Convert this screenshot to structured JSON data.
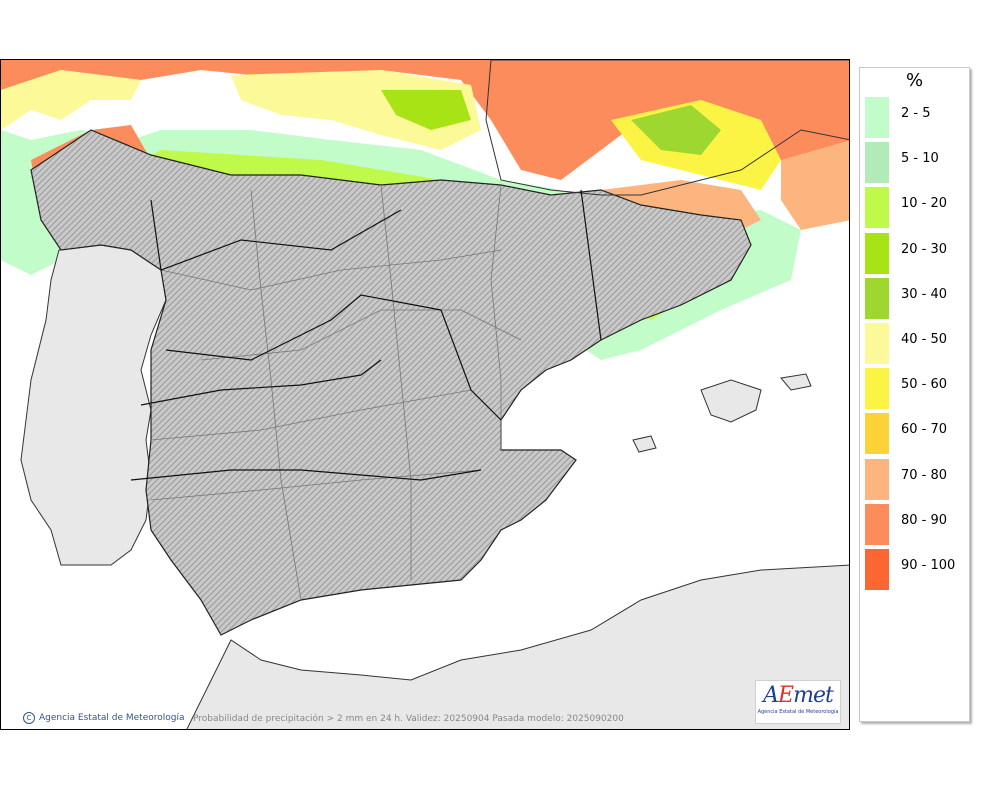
{
  "map": {
    "caption": "Probabilidad de precipitación > 2 mm en 24 h. Validez: 20250904 Pasada modelo: 2025090200",
    "copyright": "Agencia Estatal de Meteorología",
    "logo_brand_1": "A",
    "logo_brand_2": "E",
    "logo_brand_3": "met",
    "logo_sub": "Agencia Estatal de Meteorología"
  },
  "legend": {
    "title": "%",
    "items": [
      {
        "label": "2 - 5",
        "color": "#c2fcc9"
      },
      {
        "label": "5 - 10",
        "color": "#b2ebb7"
      },
      {
        "label": "10 - 20",
        "color": "#bff94a"
      },
      {
        "label": "20 - 30",
        "color": "#a8e415"
      },
      {
        "label": "30 - 40",
        "color": "#9fd731"
      },
      {
        "label": "40 - 50",
        "color": "#fcf998"
      },
      {
        "label": "50 - 60",
        "color": "#fcf445"
      },
      {
        "label": "60 - 70",
        "color": "#fbd238"
      },
      {
        "label": "70 - 80",
        "color": "#fdb57f"
      },
      {
        "label": "80 - 90",
        "color": "#fd8c5c"
      },
      {
        "label": "90 - 100",
        "color": "#fc6633"
      }
    ]
  }
}
